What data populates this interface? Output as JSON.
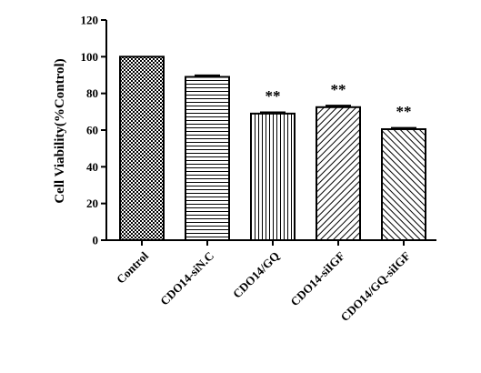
{
  "chart_data": {
    "type": "bar",
    "title": "",
    "xlabel": "",
    "ylabel": "Cell Viability(%Control)",
    "ylim": [
      0,
      120
    ],
    "yticks": [
      0,
      20,
      40,
      60,
      80,
      100,
      120
    ],
    "grid": false,
    "legend": "none",
    "categories": [
      "Control",
      "CDO14-siN.C",
      "CDO14/GQ",
      "CDO14-siIGF",
      "CDO14/GQ-siIGF"
    ],
    "values": [
      100,
      89,
      69,
      72.5,
      60.5
    ],
    "errors": [
      0,
      0.8,
      0.7,
      0.8,
      0.7
    ],
    "annotations": [
      "",
      "",
      "**",
      "**",
      "**"
    ],
    "patterns": [
      "checker",
      "horizontal",
      "vertical",
      "diagonal-up",
      "diagonal-down"
    ],
    "bar_color": "#000000"
  }
}
